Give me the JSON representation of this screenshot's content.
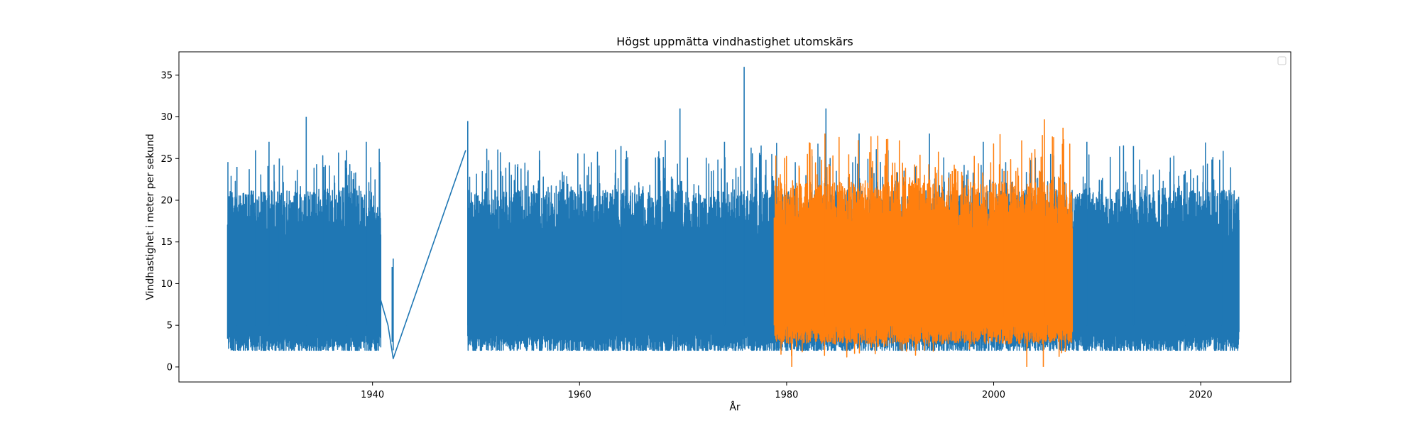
{
  "chart_data": {
    "type": "line",
    "title": "Högst uppmätta vindhastighet utomskärs",
    "xlabel": "År",
    "ylabel": "Vindhastighet i meter per sekund",
    "xlim": [
      1921.3,
      2028.7
    ],
    "ylim": [
      -1.8,
      37.8
    ],
    "x_ticks": [
      1940,
      1960,
      1980,
      2000,
      2020
    ],
    "y_ticks": [
      0,
      5,
      10,
      15,
      20,
      25,
      30,
      35
    ],
    "grid": false,
    "legend": {
      "position": "top-right",
      "entries": []
    },
    "series": [
      {
        "color": "#1f77b4",
        "segments": [
          {
            "x": [
              1926.0,
              1940.8
            ],
            "y_min": [
              2,
              1
            ],
            "y_max": [
              27,
              30
            ],
            "typical_low": 3,
            "typical_high": 17,
            "peaks": [
              [
                1926.9,
                24
              ],
              [
                1928.7,
                26
              ],
              [
                1930.0,
                27
              ],
              [
                1931.0,
                25
              ],
              [
                1933.6,
                30
              ],
              [
                1935.3,
                24
              ],
              [
                1937.5,
                26
              ],
              [
                1939.4,
                27
              ]
            ]
          },
          {
            "x": [
              1949.2,
              2023.7
            ],
            "y_min": [
              2,
              1
            ],
            "y_max": [
              36,
              36
            ],
            "typical_low": 3,
            "typical_high": 17,
            "peaks": [
              [
                1949.2,
                29.5
              ],
              [
                1954.0,
                24
              ],
              [
                1964.0,
                26.5
              ],
              [
                1969.7,
                31
              ],
              [
                1974.0,
                27
              ],
              [
                1975.9,
                36
              ],
              [
                1983.8,
                31
              ],
              [
                1987.0,
                28
              ],
              [
                1989.8,
                26
              ],
              [
                1993.8,
                28
              ],
              [
                1999.0,
                27
              ],
              [
                2009.0,
                27
              ],
              [
                2013.5,
                26.5
              ],
              [
                2018.5,
                23.5
              ],
              [
                2022.0,
                21
              ]
            ]
          }
        ],
        "connector": {
          "x": [
            1940.8,
            1941.5,
            1942.0,
            1949.0
          ],
          "y": [
            8,
            5,
            1,
            26
          ]
        },
        "spikes": [
          {
            "x": 1942.0,
            "y_min": 2,
            "y_max": 13
          }
        ],
        "gap_line": {
          "x": [
            1998.0,
            2001.0
          ],
          "y": [
            3,
            5
          ]
        }
      },
      {
        "color": "#ff7f0e",
        "segments": [
          {
            "x": [
              1978.8,
              2007.6
            ],
            "y_min": [
              0,
              0
            ],
            "y_max": [
              29.8,
              29.8
            ],
            "typical_low": 4,
            "typical_high": 18,
            "peaks": [
              [
                1983.7,
                28
              ],
              [
                1986.0,
                25.5
              ],
              [
                1991.2,
                24.5
              ],
              [
                1996.0,
                23.5
              ],
              [
                2001.0,
                23.5
              ],
              [
                2004.9,
                29.7
              ],
              [
                2006.7,
                28.7
              ]
            ],
            "dips": [
              [
                1980.5,
                0
              ],
              [
                2003.2,
                0
              ],
              [
                2004.8,
                0
              ]
            ]
          }
        ]
      }
    ]
  }
}
